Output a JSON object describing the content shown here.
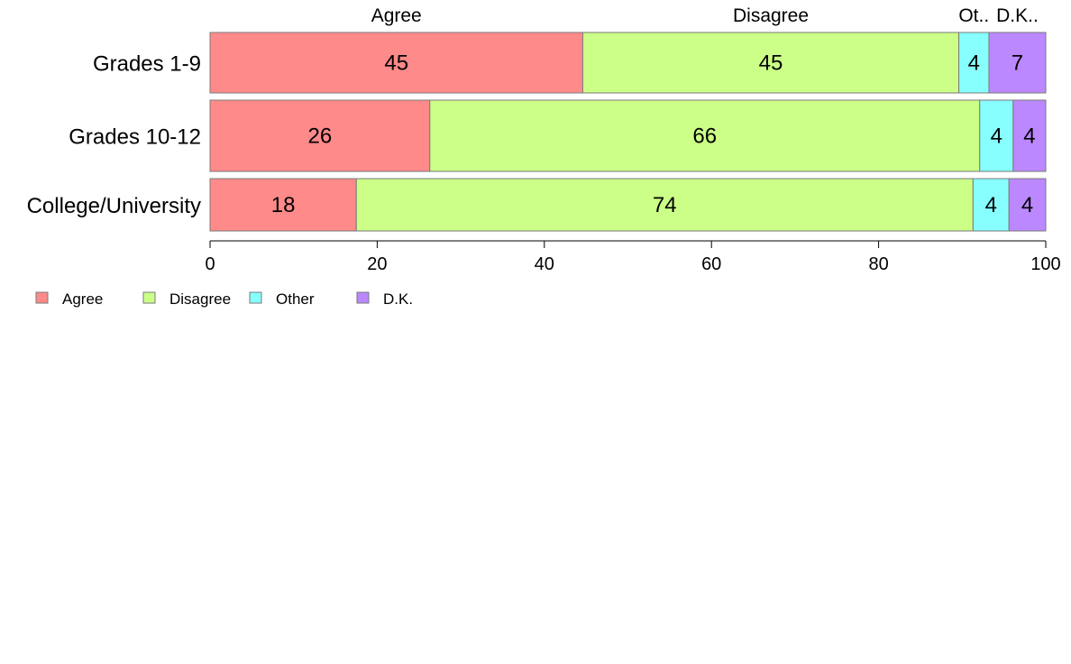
{
  "chart_data": {
    "type": "bar",
    "orientation": "horizontal",
    "stacked": true,
    "categories": [
      "Grades 1-9",
      "Grades 10-12",
      "College/University"
    ],
    "series": [
      {
        "name": "Agree",
        "short": "Agree",
        "color": "#ff8a8a",
        "values": [
          44.6,
          26.3,
          17.5
        ],
        "labels": [
          "45",
          "26",
          "18"
        ]
      },
      {
        "name": "Disagree",
        "short": "Disagree",
        "color": "#ccff88",
        "values": [
          45.0,
          65.8,
          73.8
        ],
        "labels": [
          "45",
          "66",
          "74"
        ]
      },
      {
        "name": "Other",
        "short": "Ot..",
        "color": "#88ffff",
        "values": [
          3.6,
          4.0,
          4.3
        ],
        "labels": [
          "4",
          "4",
          "4"
        ]
      },
      {
        "name": "D.K.",
        "short": "D.K..",
        "color": "#bb88ff",
        "values": [
          6.8,
          3.9,
          4.4
        ],
        "labels": [
          "7",
          "4",
          "4"
        ]
      }
    ],
    "xlim": [
      0,
      100
    ],
    "xticks": [
      "0",
      "20",
      "40",
      "60",
      "80",
      "100"
    ],
    "grid": false,
    "legend_position": "bottom-left"
  }
}
